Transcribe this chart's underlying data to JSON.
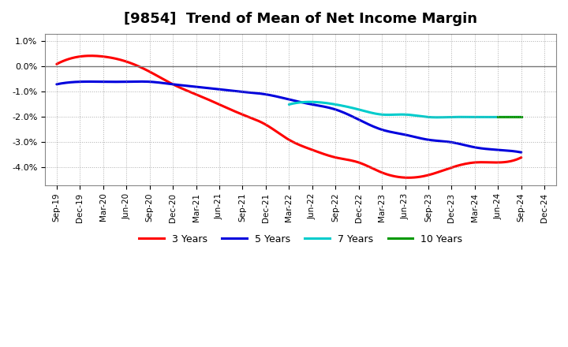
{
  "title": "[9854]  Trend of Mean of Net Income Margin",
  "title_fontsize": 13,
  "background_color": "#ffffff",
  "plot_bg_color": "#ffffff",
  "grid_color": "#999999",
  "x_labels": [
    "Sep-19",
    "Dec-19",
    "Mar-20",
    "Jun-20",
    "Sep-20",
    "Dec-20",
    "Mar-21",
    "Jun-21",
    "Sep-21",
    "Dec-21",
    "Mar-22",
    "Jun-22",
    "Sep-22",
    "Dec-22",
    "Mar-23",
    "Jun-23",
    "Sep-23",
    "Dec-23",
    "Mar-24",
    "Jun-24",
    "Sep-24",
    "Dec-24"
  ],
  "ylim": [
    -0.047,
    0.013
  ],
  "yticks": [
    0.01,
    0.0,
    -0.01,
    -0.02,
    -0.03,
    -0.04
  ],
  "ytick_labels": [
    "1.0%",
    "0.0%",
    "-1.0%",
    "-2.0%",
    "-3.0%",
    "-4.0%"
  ],
  "series": {
    "3 Years": {
      "color": "#ff0000",
      "linewidth": 2.2,
      "values": [
        0.001,
        0.004,
        0.004,
        0.002,
        -0.002,
        -0.007,
        -0.011,
        -0.015,
        -0.019,
        -0.023,
        -0.029,
        -0.033,
        -0.036,
        -0.038,
        -0.042,
        -0.044,
        -0.043,
        -0.04,
        -0.038,
        -0.038,
        -0.036,
        null
      ]
    },
    "5 Years": {
      "color": "#0000dd",
      "linewidth": 2.2,
      "values": [
        -0.007,
        -0.006,
        -0.006,
        -0.006,
        -0.006,
        -0.007,
        -0.008,
        -0.009,
        -0.01,
        -0.011,
        -0.013,
        -0.015,
        -0.017,
        -0.021,
        -0.025,
        -0.027,
        -0.029,
        -0.03,
        -0.032,
        -0.033,
        -0.034,
        null
      ]
    },
    "7 Years": {
      "color": "#00cccc",
      "linewidth": 2.2,
      "values": [
        null,
        null,
        null,
        null,
        null,
        null,
        null,
        null,
        null,
        null,
        -0.015,
        -0.014,
        -0.015,
        -0.017,
        -0.019,
        -0.019,
        -0.02,
        -0.02,
        -0.02,
        -0.02,
        -0.02,
        null
      ]
    },
    "10 Years": {
      "color": "#009900",
      "linewidth": 2.2,
      "values": [
        null,
        null,
        null,
        null,
        null,
        null,
        null,
        null,
        null,
        null,
        null,
        null,
        null,
        null,
        null,
        null,
        null,
        null,
        null,
        -0.02,
        -0.02,
        null
      ]
    }
  },
  "legend_order": [
    "3 Years",
    "5 Years",
    "7 Years",
    "10 Years"
  ],
  "legend_colors": [
    "#ff0000",
    "#0000dd",
    "#00cccc",
    "#009900"
  ]
}
